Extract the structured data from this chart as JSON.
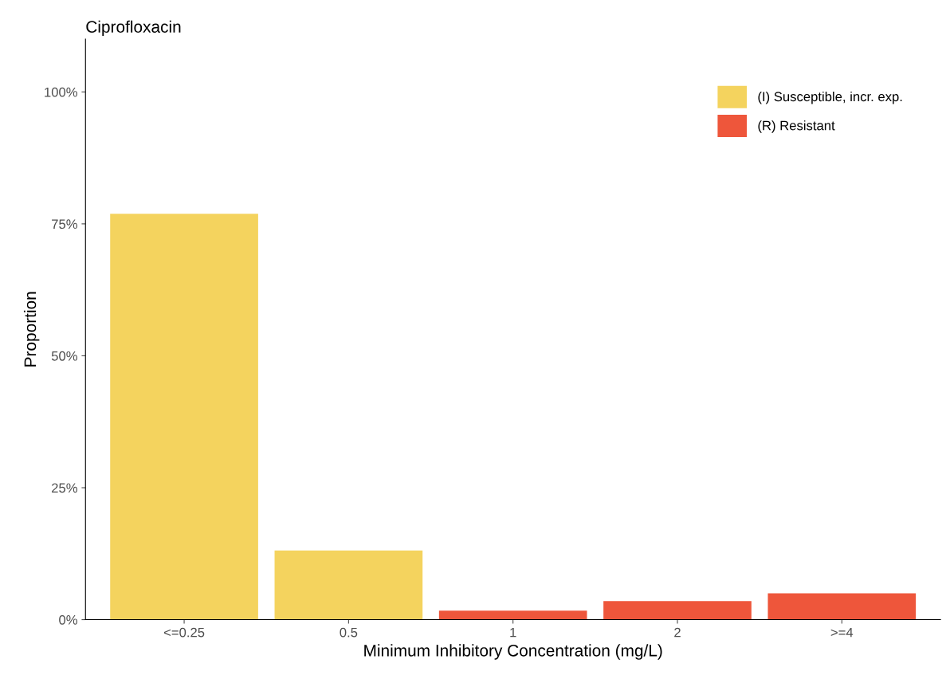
{
  "chart_data": {
    "type": "bar",
    "title": "Ciprofloxacin",
    "xlabel": "Minimum Inhibitory Concentration (mg/L)",
    "ylabel": "Proportion",
    "categories": [
      "<=0.25",
      "0.5",
      "1",
      "2",
      ">=4"
    ],
    "series": [
      {
        "name": "(I) Susceptible, incr. exp.",
        "color": "#f4d35e",
        "values": [
          76.9,
          13.1,
          null,
          null,
          null
        ]
      },
      {
        "name": "(R) Resistant",
        "color": "#ee563b",
        "values": [
          null,
          null,
          1.7,
          3.5,
          5.0
        ]
      }
    ],
    "ylim": [
      0,
      110
    ],
    "yticks": [
      {
        "value": 0,
        "label": "0%"
      },
      {
        "value": 25,
        "label": "25%"
      },
      {
        "value": 50,
        "label": "50%"
      },
      {
        "value": 75,
        "label": "75%"
      },
      {
        "value": 100,
        "label": "100%"
      }
    ],
    "grid": false,
    "legend": "top right"
  }
}
